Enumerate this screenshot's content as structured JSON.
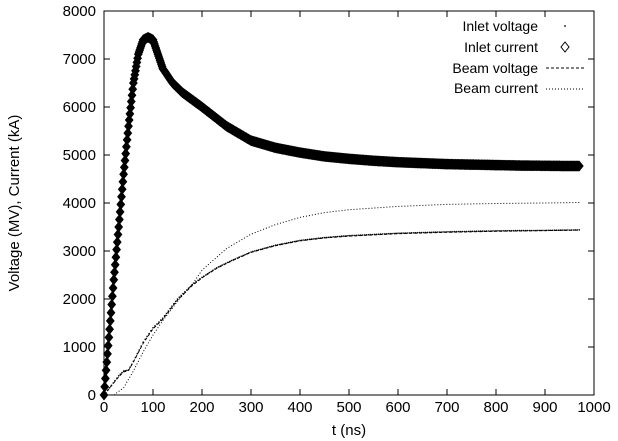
{
  "chart_data": {
    "type": "line",
    "title": "",
    "xlabel": "t (ns)",
    "ylabel": "Voltage (MV), Current (kA)",
    "xlim": [
      0,
      1000
    ],
    "ylim": [
      0,
      8000
    ],
    "xticks": [
      0,
      100,
      200,
      300,
      400,
      500,
      600,
      700,
      800,
      900,
      1000
    ],
    "yticks": [
      0,
      1000,
      2000,
      3000,
      4000,
      5000,
      6000,
      7000,
      8000
    ],
    "grid": false,
    "legend_position": "top-right",
    "series": [
      {
        "name": "Inlet voltage",
        "style": "dots",
        "x": [
          0,
          30,
          40,
          50,
          60,
          80,
          100,
          120,
          150,
          180,
          200,
          230,
          260,
          300,
          350,
          400,
          450,
          500,
          600,
          700,
          800,
          900,
          970
        ],
        "y": [
          0,
          400,
          500,
          520,
          700,
          1100,
          1400,
          1600,
          2000,
          2300,
          2450,
          2650,
          2800,
          2980,
          3120,
          3220,
          3280,
          3320,
          3370,
          3400,
          3420,
          3430,
          3440
        ]
      },
      {
        "name": "Inlet current",
        "style": "diamonds",
        "x": [
          0,
          10,
          20,
          30,
          40,
          50,
          60,
          70,
          80,
          90,
          100,
          110,
          120,
          140,
          160,
          180,
          200,
          225,
          250,
          275,
          300,
          350,
          400,
          450,
          500,
          550,
          600,
          650,
          700,
          750,
          800,
          850,
          900,
          950,
          970
        ],
        "y": [
          0,
          1200,
          2400,
          3500,
          4600,
          5600,
          6500,
          7100,
          7400,
          7450,
          7400,
          7100,
          6800,
          6500,
          6300,
          6150,
          6000,
          5800,
          5600,
          5450,
          5300,
          5150,
          5050,
          4970,
          4920,
          4880,
          4850,
          4830,
          4810,
          4800,
          4790,
          4780,
          4775,
          4770,
          4770
        ]
      },
      {
        "name": "Beam voltage",
        "style": "dashed",
        "x": [
          0,
          30,
          40,
          50,
          60,
          80,
          100,
          120,
          150,
          180,
          200,
          230,
          260,
          300,
          350,
          400,
          450,
          500,
          600,
          700,
          800,
          900,
          970
        ],
        "y": [
          0,
          380,
          480,
          510,
          690,
          1080,
          1380,
          1580,
          1980,
          2280,
          2440,
          2640,
          2790,
          2970,
          3110,
          3210,
          3270,
          3310,
          3360,
          3390,
          3410,
          3425,
          3435
        ]
      },
      {
        "name": "Beam current",
        "style": "dotted",
        "x": [
          20,
          40,
          60,
          80,
          100,
          120,
          150,
          180,
          200,
          250,
          300,
          350,
          400,
          450,
          500,
          600,
          700,
          800,
          900,
          970
        ],
        "y": [
          0,
          150,
          500,
          900,
          1250,
          1550,
          1950,
          2300,
          2600,
          3050,
          3350,
          3550,
          3700,
          3800,
          3860,
          3930,
          3970,
          3990,
          4000,
          4010
        ]
      }
    ]
  }
}
